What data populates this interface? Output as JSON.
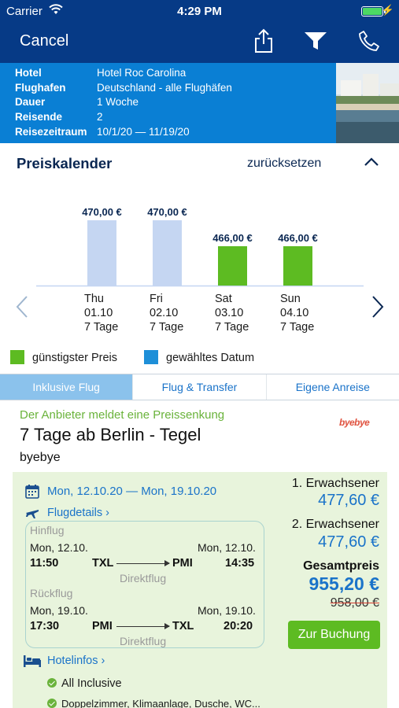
{
  "status_bar": {
    "carrier": "Carrier",
    "time": "4:29 PM"
  },
  "nav": {
    "cancel_label": "Cancel",
    "icons": [
      "share-icon",
      "filter-icon",
      "phone-icon"
    ]
  },
  "trip_info": {
    "rows": [
      {
        "key": "Hotel",
        "value": "Hotel Roc Carolina"
      },
      {
        "key": "Flughafen",
        "value": "Deutschland - alle Flughäfen"
      },
      {
        "key": "Dauer",
        "value": "1 Woche"
      },
      {
        "key": "Reisende",
        "value": "2"
      },
      {
        "key": "Reisezeitraum",
        "value": "10/1/20 — 11/19/20"
      }
    ]
  },
  "price_calendar": {
    "title": "Preiskalender",
    "reset_label": "zurücksetzen",
    "days": [
      {
        "weekday": "Thu",
        "date": "01.10",
        "duration": "7 Tage",
        "price_label": "470,00 €"
      },
      {
        "weekday": "Fri",
        "date": "02.10",
        "duration": "7 Tage",
        "price_label": "470,00 €"
      },
      {
        "weekday": "Sat",
        "date": "03.10",
        "duration": "7 Tage",
        "price_label": "466,00 €"
      },
      {
        "weekday": "Sun",
        "date": "04.10",
        "duration": "7 Tage",
        "price_label": "466,00 €"
      }
    ],
    "legend": {
      "cheapest": "günstigster Preis",
      "selected": "gewähltes Datum"
    }
  },
  "chart_data": {
    "type": "bar",
    "categories": [
      "01.10",
      "02.10",
      "03.10",
      "04.10"
    ],
    "values": [
      470.0,
      470.0,
      466.0,
      466.0
    ],
    "cheapest": [
      false,
      false,
      true,
      true
    ],
    "colors": {
      "normal": "#c5d6f2",
      "cheapest": "#5dbb22",
      "selected": "#1e8fd8"
    }
  },
  "tabs": [
    {
      "label": "Inklusive Flug",
      "active": true
    },
    {
      "label": "Flug & Transfer",
      "active": false
    },
    {
      "label": "Eigene Anreise",
      "active": false
    }
  ],
  "offer": {
    "notice": "Der Anbieter meldet eine Preissenkung",
    "logo_text": "byebye",
    "title": "7 Tage ab Berlin - Tegel",
    "provider": "byebye",
    "date_range": "Mon, 12.10.20 — Mon, 19.10.20",
    "flight_details_label": "Flugdetails",
    "outbound": {
      "label": "Hinflug",
      "dep_date": "Mon, 12.10.",
      "arr_date": "Mon, 12.10.",
      "dep_time": "11:50",
      "from": "TXL",
      "to": "PMI",
      "arr_time": "14:35",
      "type": "Direktflug"
    },
    "return": {
      "label": "Rückflug",
      "dep_date": "Mon, 19.10.",
      "arr_date": "Mon, 19.10.",
      "dep_time": "17:30",
      "from": "PMI",
      "to": "TXL",
      "arr_time": "20:20",
      "type": "Direktflug"
    },
    "hotel_infos_label": "Hotelinfos",
    "amenities": [
      "All Inclusive",
      "Doppelzimmer, Klimaanlage, Dusche, WC..."
    ],
    "prices": {
      "adult1_label": "1. Erwachsener",
      "adult1_price": "477,60 €",
      "adult2_label": "2. Erwachsener",
      "adult2_price": "477,60 €",
      "total_label": "Gesamtpreis",
      "total_price": "955,20 €",
      "old_price": "958,00 €"
    },
    "book_label": "Zur Buchung"
  },
  "colors": {
    "nav_bg": "#063a86",
    "info_bg": "#0a7fd4",
    "link": "#1a73c9",
    "notice_green": "#6ab33b",
    "panel_bg": "#e8f4dc"
  }
}
